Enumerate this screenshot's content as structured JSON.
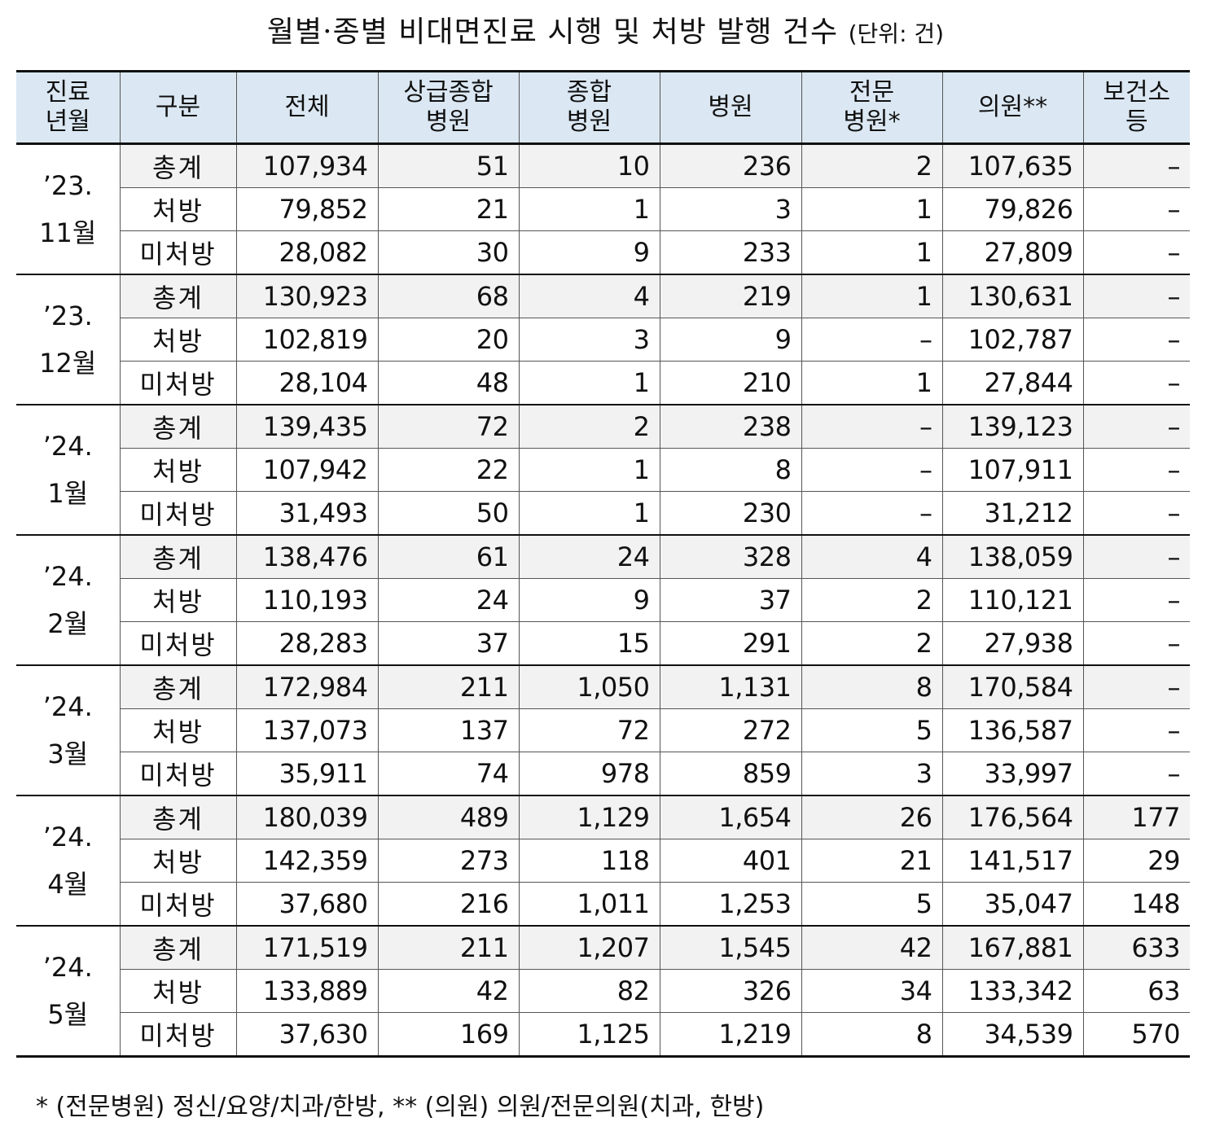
{
  "title": "월별·종별 비대면진료 시행 및 처방 발행 건수",
  "unit": "(단위: 건)",
  "headers": [
    [
      "진료",
      "년월"
    ],
    [
      "구분"
    ],
    [
      "전체"
    ],
    [
      "상급종합",
      "병원"
    ],
    [
      "종합",
      "병원"
    ],
    [
      "병원"
    ],
    [
      "전문",
      "병원*"
    ],
    [
      "의원**"
    ],
    [
      "보건소",
      "등"
    ]
  ],
  "months": [
    {
      "label": [
        "’23.",
        "11월"
      ],
      "rows": [
        [
          "총계",
          "107,934",
          "51",
          "10",
          "236",
          "2",
          "107,635",
          "–"
        ],
        [
          "처방",
          "79,852",
          "21",
          "1",
          "3",
          "1",
          "79,826",
          "–"
        ],
        [
          "미처방",
          "28,082",
          "30",
          "9",
          "233",
          "1",
          "27,809",
          "–"
        ]
      ]
    },
    {
      "label": [
        "’23.",
        "12월"
      ],
      "rows": [
        [
          "총계",
          "130,923",
          "68",
          "4",
          "219",
          "1",
          "130,631",
          "–"
        ],
        [
          "처방",
          "102,819",
          "20",
          "3",
          "9",
          "–",
          "102,787",
          "–"
        ],
        [
          "미처방",
          "28,104",
          "48",
          "1",
          "210",
          "1",
          "27,844",
          "–"
        ]
      ]
    },
    {
      "label": [
        "’24.",
        "1월"
      ],
      "rows": [
        [
          "총계",
          "139,435",
          "72",
          "2",
          "238",
          "–",
          "139,123",
          "–"
        ],
        [
          "처방",
          "107,942",
          "22",
          "1",
          "8",
          "–",
          "107,911",
          "–"
        ],
        [
          "미처방",
          "31,493",
          "50",
          "1",
          "230",
          "–",
          "31,212",
          "–"
        ]
      ]
    },
    {
      "label": [
        "’24.",
        "2월"
      ],
      "rows": [
        [
          "총계",
          "138,476",
          "61",
          "24",
          "328",
          "4",
          "138,059",
          "–"
        ],
        [
          "처방",
          "110,193",
          "24",
          "9",
          "37",
          "2",
          "110,121",
          "–"
        ],
        [
          "미처방",
          "28,283",
          "37",
          "15",
          "291",
          "2",
          "27,938",
          "–"
        ]
      ]
    },
    {
      "label": [
        "’24.",
        "3월"
      ],
      "rows": [
        [
          "총계",
          "172,984",
          "211",
          "1,050",
          "1,131",
          "8",
          "170,584",
          "–"
        ],
        [
          "처방",
          "137,073",
          "137",
          "72",
          "272",
          "5",
          "136,587",
          "–"
        ],
        [
          "미처방",
          "35,911",
          "74",
          "978",
          "859",
          "3",
          "33,997",
          "–"
        ]
      ]
    },
    {
      "label": [
        "’24.",
        "4월"
      ],
      "rows": [
        [
          "총계",
          "180,039",
          "489",
          "1,129",
          "1,654",
          "26",
          "176,564",
          "177"
        ],
        [
          "처방",
          "142,359",
          "273",
          "118",
          "401",
          "21",
          "141,517",
          "29"
        ],
        [
          "미처방",
          "37,680",
          "216",
          "1,011",
          "1,253",
          "5",
          "35,047",
          "148"
        ]
      ]
    },
    {
      "label": [
        "’24.",
        "5월"
      ],
      "rows": [
        [
          "총계",
          "171,519",
          "211",
          "1,207",
          "1,545",
          "42",
          "167,881",
          "633"
        ],
        [
          "처방",
          "133,889",
          "42",
          "82",
          "326",
          "34",
          "133,342",
          "63"
        ],
        [
          "미처방",
          "37,630",
          "169",
          "1,125",
          "1,219",
          "8",
          "34,539",
          "570"
        ]
      ]
    }
  ],
  "footnote": "* (전문병원) 정신/요양/치과/한방, ** (의원) 의원/전문의원(치과, 한방)"
}
